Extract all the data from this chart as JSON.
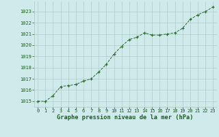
{
  "x": [
    0,
    1,
    2,
    3,
    4,
    5,
    6,
    7,
    8,
    9,
    10,
    11,
    12,
    13,
    14,
    15,
    16,
    17,
    18,
    19,
    20,
    21,
    22,
    23
  ],
  "y": [
    1015.0,
    1015.0,
    1015.5,
    1016.3,
    1016.4,
    1016.5,
    1016.8,
    1017.0,
    1017.6,
    1018.3,
    1019.2,
    1019.9,
    1020.5,
    1020.7,
    1021.1,
    1020.9,
    1020.9,
    1021.0,
    1021.1,
    1021.5,
    1022.3,
    1022.7,
    1023.0,
    1023.4
  ],
  "ylim": [
    1014.5,
    1023.9
  ],
  "yticks": [
    1015,
    1016,
    1017,
    1018,
    1019,
    1020,
    1021,
    1022,
    1023
  ],
  "xticks": [
    0,
    1,
    2,
    3,
    4,
    5,
    6,
    7,
    8,
    9,
    10,
    11,
    12,
    13,
    14,
    15,
    16,
    17,
    18,
    19,
    20,
    21,
    22,
    23
  ],
  "line_color": "#2d6a2d",
  "marker_color": "#2d6a2d",
  "bg_color": "#ceeaea",
  "grid_color": "#a8c4c4",
  "xlabel": "Graphe pression niveau de la mer (hPa)",
  "xlabel_color": "#1a5c1a",
  "tick_color": "#1a5c1a",
  "tick_fontsize": 5.0,
  "xlabel_fontsize": 6.2,
  "xlim": [
    -0.5,
    23.5
  ]
}
